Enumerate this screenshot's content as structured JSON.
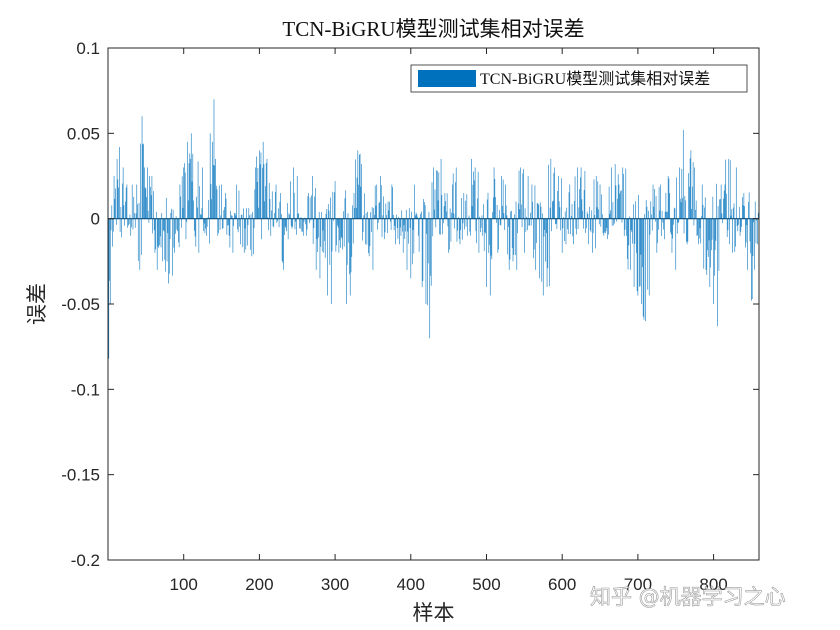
{
  "chart_data": {
    "type": "bar",
    "title": "TCN-BiGRU模型测试集相对误差",
    "xlabel": "样本",
    "ylabel": "误差",
    "xlim": [
      0,
      860
    ],
    "ylim": [
      -0.2,
      0.1
    ],
    "xticks": [
      100,
      200,
      300,
      400,
      500,
      600,
      700,
      800
    ],
    "yticks": [
      0.1,
      0.05,
      0,
      -0.05,
      -0.1,
      -0.15,
      -0.2
    ],
    "ytick_labels": [
      "0.1",
      "0.05",
      "0",
      "-0.05",
      "-0.1",
      "-0.15",
      "-0.2"
    ],
    "grid": false,
    "legend_position": "top-right",
    "series": [
      {
        "name": "TCN-BiGRU模型测试集相对误差",
        "color": "#0072BD",
        "n": 860,
        "note_envelope": [
          [
            1,
            -0.082
          ],
          [
            3,
            -0.05
          ],
          [
            8,
            0.025
          ],
          [
            12,
            0.035
          ],
          [
            15,
            0.042
          ],
          [
            20,
            0.03
          ],
          [
            25,
            0.02
          ],
          [
            30,
            -0.01
          ],
          [
            38,
            0.02
          ],
          [
            42,
            -0.03
          ],
          [
            45,
            0.06
          ],
          [
            48,
            0.03
          ],
          [
            52,
            0.03
          ],
          [
            55,
            0.025
          ],
          [
            58,
            0.025
          ],
          [
            62,
            -0.02
          ],
          [
            65,
            -0.03
          ],
          [
            72,
            -0.025
          ],
          [
            80,
            -0.038
          ],
          [
            88,
            -0.02
          ],
          [
            95,
            0.02
          ],
          [
            100,
            0.03
          ],
          [
            105,
            0.045
          ],
          [
            110,
            0.05
          ],
          [
            112,
            0.038
          ],
          [
            120,
            -0.02
          ],
          [
            125,
            0.03
          ],
          [
            130,
            -0.01
          ],
          [
            135,
            0.05
          ],
          [
            138,
            0.045
          ],
          [
            140,
            0.07
          ],
          [
            142,
            0.035
          ],
          [
            145,
            -0.01
          ],
          [
            150,
            0.02
          ],
          [
            155,
            0.015
          ],
          [
            160,
            -0.01
          ],
          [
            165,
            -0.02
          ],
          [
            170,
            0.02
          ],
          [
            175,
            -0.015
          ],
          [
            180,
            -0.02
          ],
          [
            190,
            -0.022
          ],
          [
            195,
            0.03
          ],
          [
            200,
            0.04
          ],
          [
            205,
            0.045
          ],
          [
            210,
            0.035
          ],
          [
            215,
            -0.01
          ],
          [
            222,
            0.02
          ],
          [
            228,
            0.015
          ],
          [
            232,
            -0.03
          ],
          [
            238,
            -0.012
          ],
          [
            245,
            0.03
          ],
          [
            250,
            0.025
          ],
          [
            258,
            -0.01
          ],
          [
            262,
            -0.01
          ],
          [
            265,
            0.015
          ],
          [
            270,
            0.025
          ],
          [
            275,
            -0.03
          ],
          [
            280,
            -0.035
          ],
          [
            285,
            -0.02
          ],
          [
            290,
            -0.045
          ],
          [
            295,
            -0.05
          ],
          [
            300,
            0.022
          ],
          [
            305,
            -0.02
          ],
          [
            310,
            -0.018
          ],
          [
            315,
            -0.05
          ],
          [
            320,
            -0.045
          ],
          [
            325,
            0.015
          ],
          [
            330,
            0.04
          ],
          [
            335,
            0.032
          ],
          [
            340,
            -0.015
          ],
          [
            345,
            -0.022
          ],
          [
            350,
            -0.03
          ],
          [
            355,
            0.02
          ],
          [
            360,
            0.025
          ],
          [
            365,
            -0.012
          ],
          [
            370,
            0.01
          ],
          [
            375,
            0.02
          ],
          [
            380,
            -0.015
          ],
          [
            385,
            -0.015
          ],
          [
            390,
            -0.02
          ],
          [
            395,
            -0.03
          ],
          [
            400,
            -0.035
          ],
          [
            405,
            0.02
          ],
          [
            410,
            -0.01
          ],
          [
            415,
            -0.04
          ],
          [
            420,
            -0.05
          ],
          [
            425,
            -0.07
          ],
          [
            430,
            0.03
          ],
          [
            435,
            0.028
          ],
          [
            440,
            0.035
          ],
          [
            445,
            0.015
          ],
          [
            450,
            -0.02
          ],
          [
            455,
            0.02
          ],
          [
            460,
            0.03
          ],
          [
            465,
            -0.015
          ],
          [
            470,
            0.015
          ],
          [
            475,
            -0.01
          ],
          [
            480,
            0.035
          ],
          [
            485,
            0.03
          ],
          [
            490,
            -0.02
          ],
          [
            495,
            -0.01
          ],
          [
            500,
            -0.04
          ],
          [
            505,
            -0.045
          ],
          [
            510,
            0.03
          ],
          [
            515,
            -0.02
          ],
          [
            520,
            0.025
          ],
          [
            525,
            0.02
          ],
          [
            530,
            -0.03
          ],
          [
            535,
            -0.025
          ],
          [
            540,
            -0.03
          ],
          [
            545,
            0.03
          ],
          [
            550,
            -0.02
          ],
          [
            555,
            0.025
          ],
          [
            560,
            0.02
          ],
          [
            565,
            -0.03
          ],
          [
            570,
            -0.035
          ],
          [
            575,
            -0.045
          ],
          [
            580,
            -0.04
          ],
          [
            585,
            0.035
          ],
          [
            590,
            0.03
          ],
          [
            595,
            0.025
          ],
          [
            600,
            -0.02
          ],
          [
            605,
            -0.015
          ],
          [
            610,
            0.02
          ],
          [
            615,
            -0.015
          ],
          [
            620,
            0.03
          ],
          [
            625,
            0.03
          ],
          [
            630,
            0.028
          ],
          [
            635,
            -0.015
          ],
          [
            640,
            -0.02
          ],
          [
            645,
            0.025
          ],
          [
            650,
            0.02
          ],
          [
            655,
            -0.01
          ],
          [
            660,
            -0.012
          ],
          [
            665,
            0.03
          ],
          [
            670,
            0.032
          ],
          [
            675,
            0.02
          ],
          [
            680,
            0.03
          ],
          [
            685,
            -0.01
          ],
          [
            690,
            -0.03
          ],
          [
            695,
            -0.04
          ],
          [
            700,
            -0.045
          ],
          [
            705,
            -0.05
          ],
          [
            710,
            -0.06
          ],
          [
            715,
            -0.045
          ],
          [
            720,
            0.02
          ],
          [
            725,
            -0.02
          ],
          [
            730,
            0.02
          ],
          [
            735,
            -0.012
          ],
          [
            740,
            0.025
          ],
          [
            745,
            -0.02
          ],
          [
            750,
            -0.03
          ],
          [
            755,
            0.03
          ],
          [
            760,
            0.052
          ],
          [
            765,
            -0.015
          ],
          [
            770,
            0.04
          ],
          [
            775,
            0.03
          ],
          [
            780,
            -0.015
          ],
          [
            785,
            0.02
          ],
          [
            790,
            -0.03
          ],
          [
            795,
            -0.04
          ],
          [
            800,
            -0.05
          ],
          [
            805,
            -0.063
          ],
          [
            810,
            0.02
          ],
          [
            815,
            0.02
          ],
          [
            820,
            0.035
          ],
          [
            825,
            -0.02
          ],
          [
            830,
            0.03
          ],
          [
            835,
            -0.01
          ],
          [
            840,
            0.015
          ],
          [
            845,
            -0.03
          ],
          [
            850,
            -0.048
          ],
          [
            855,
            0.01
          ],
          [
            860,
            -0.017
          ]
        ]
      }
    ]
  },
  "watermark": {
    "text": "知乎 @机器学习之心"
  }
}
